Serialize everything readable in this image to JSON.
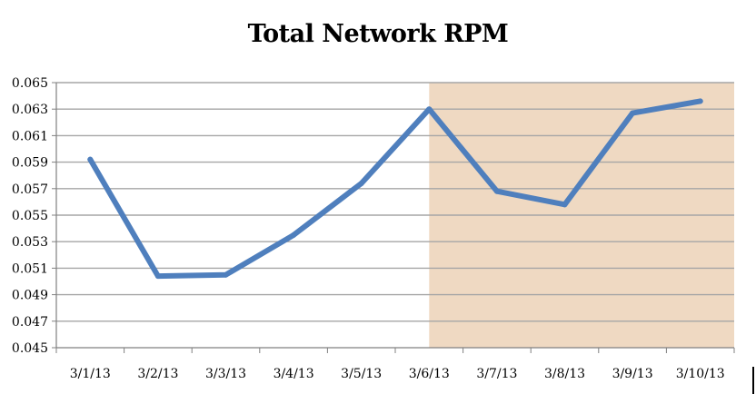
{
  "chart_data": {
    "type": "line",
    "title": "Total Network RPM",
    "xlabel": "",
    "ylabel": "",
    "categories": [
      "3/1/13",
      "3/2/13",
      "3/3/13",
      "3/4/13",
      "3/5/13",
      "3/6/13",
      "3/7/13",
      "3/8/13",
      "3/9/13",
      "3/10/13"
    ],
    "series": [
      {
        "values": [
          0.0592,
          0.0504,
          0.0505,
          0.0535,
          0.0574,
          0.063,
          0.0568,
          0.0558,
          0.0627,
          0.0636
        ]
      }
    ],
    "ylim": [
      0.045,
      0.065
    ],
    "yticks": [
      "0.045",
      "0.047",
      "0.049",
      "0.051",
      "0.053",
      "0.055",
      "0.057",
      "0.059",
      "0.061",
      "0.063",
      "0.065"
    ],
    "grid": true,
    "legend": "none",
    "highlight_region": {
      "from_category": "3/6/13",
      "to_category": "3/10/13"
    },
    "colors": {
      "line": "#4f7fbd",
      "highlight": "#efd9c2",
      "grid": "#a6a6a6"
    }
  }
}
